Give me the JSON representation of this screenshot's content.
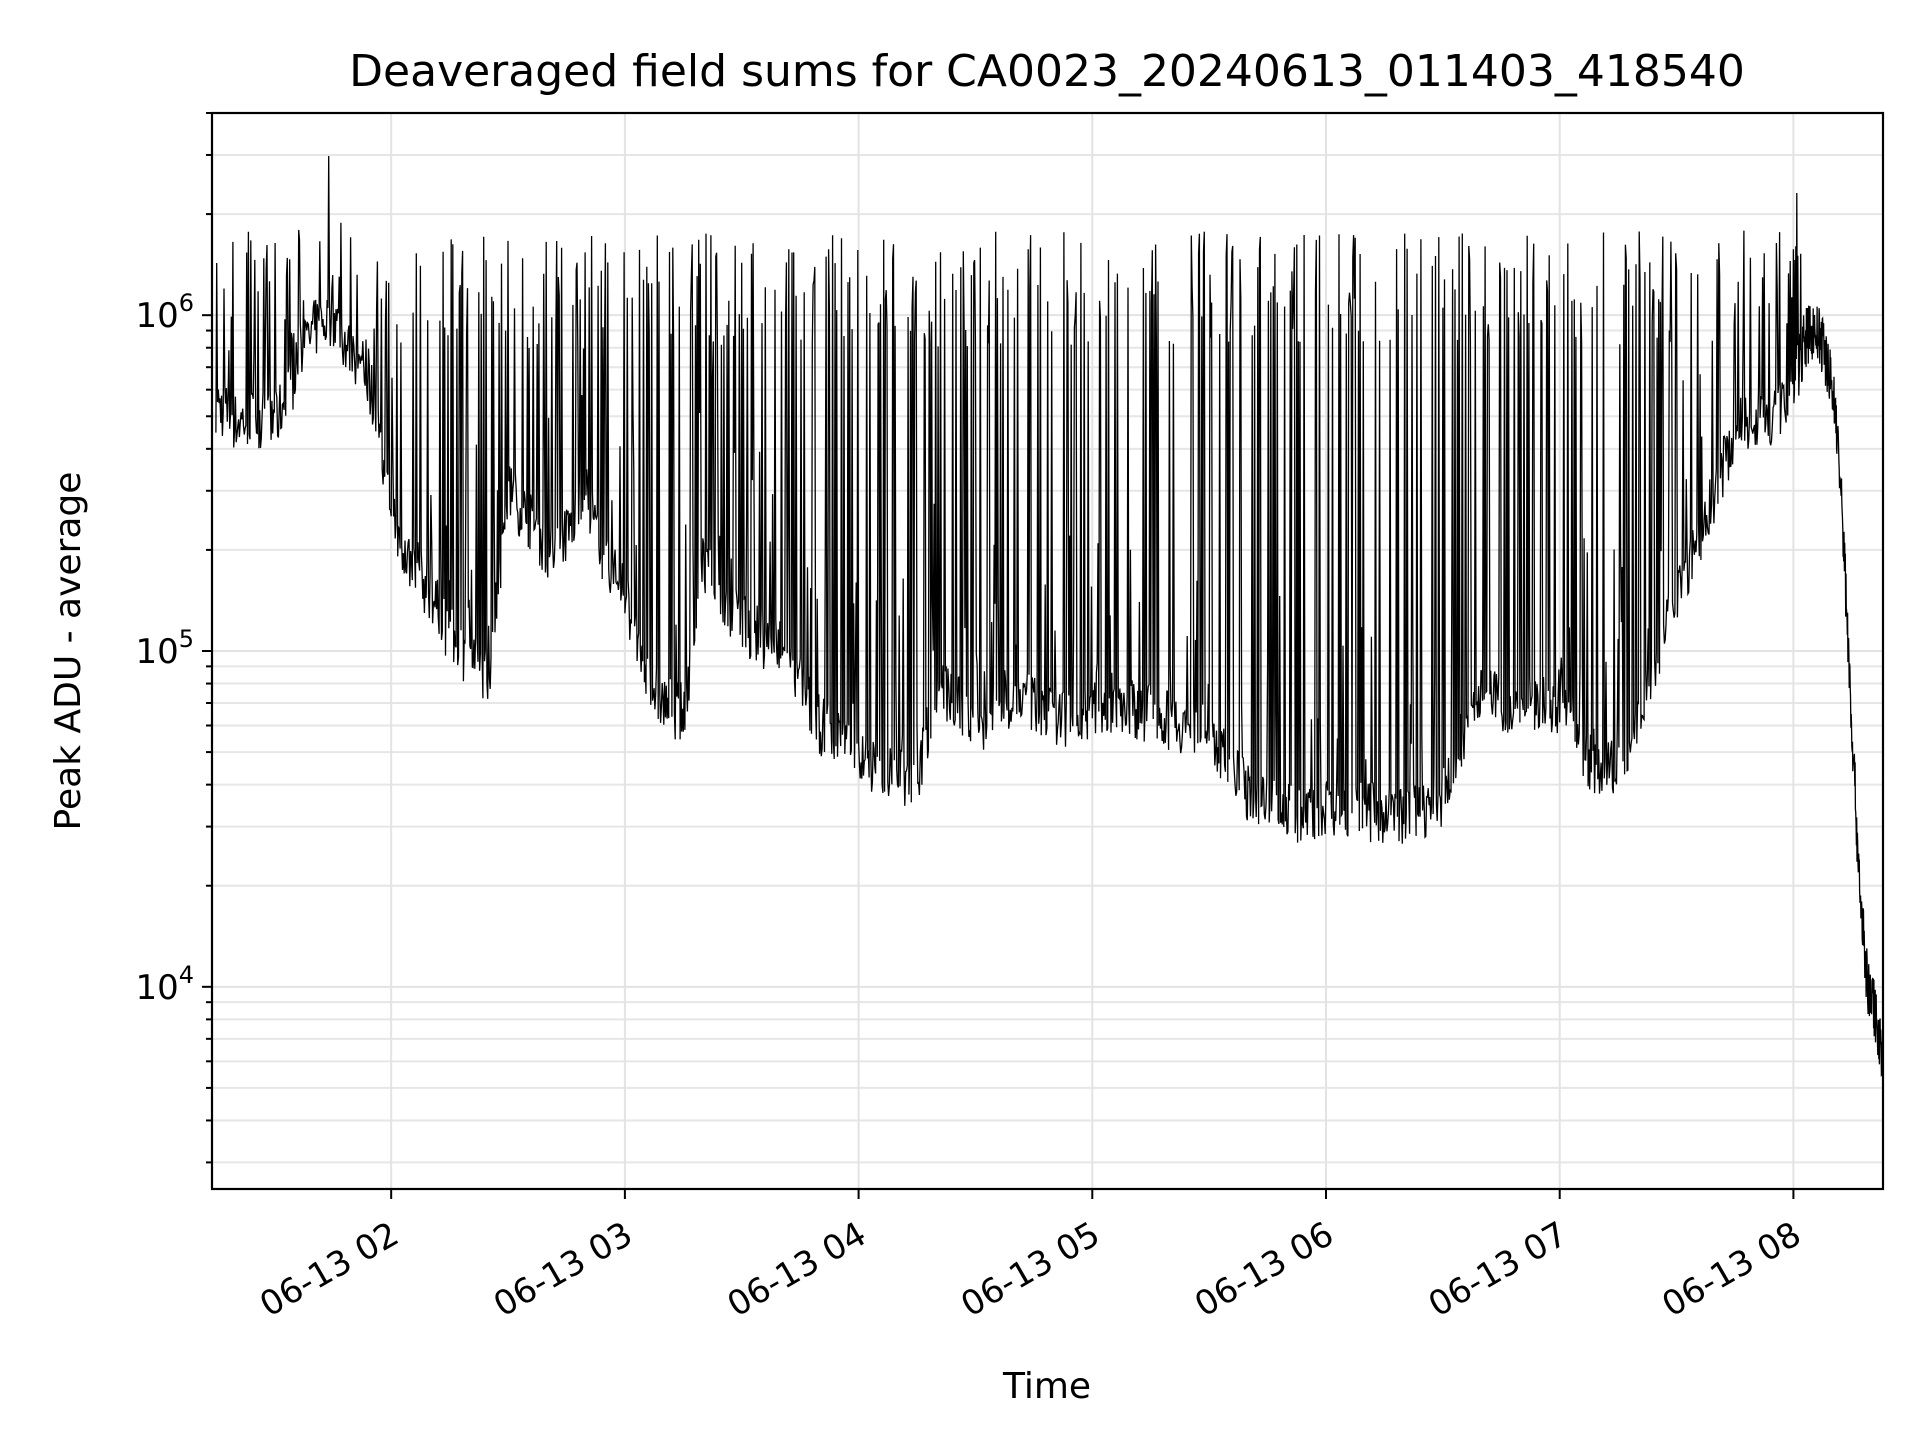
{
  "chart_data": {
    "type": "line",
    "title": "Deaveraged field sums for CA0023_20240613_011403_418540",
    "xlabel": "Time",
    "ylabel": "Peak ADU - average",
    "yscale": "log",
    "ylim": [
      2500,
      4000000
    ],
    "xlim": [
      "2024-06-13 01:14",
      "2024-06-13 08:23"
    ],
    "x_ticks": [
      "06-13 02",
      "06-13 03",
      "06-13 04",
      "06-13 05",
      "06-13 06",
      "06-13 07",
      "06-13 08"
    ],
    "y_ticks": [
      {
        "base": "10",
        "exp": "4",
        "value": 10000
      },
      {
        "base": "10",
        "exp": "5",
        "value": 100000
      },
      {
        "base": "10",
        "exp": "6",
        "value": 1000000
      }
    ],
    "grid": true,
    "line_color": "#000000",
    "series": [
      {
        "x": [
          "2024-06-13 01:15",
          "2024-06-13 01:20",
          "2024-06-13 01:25",
          "2024-06-13 01:30",
          "2024-06-13 01:35",
          "2024-06-13 01:40",
          "2024-06-13 01:45",
          "2024-06-13 01:50",
          "2024-06-13 01:55",
          "2024-06-13 02:00",
          "2024-06-13 02:05",
          "2024-06-13 02:10",
          "2024-06-13 02:15",
          "2024-06-13 02:20",
          "2024-06-13 02:25",
          "2024-06-13 02:30",
          "2024-06-13 02:35",
          "2024-06-13 02:40",
          "2024-06-13 02:45",
          "2024-06-13 02:50",
          "2024-06-13 02:55",
          "2024-06-13 03:00",
          "2024-06-13 03:05",
          "2024-06-13 03:10",
          "2024-06-13 03:15",
          "2024-06-13 03:20",
          "2024-06-13 03:25",
          "2024-06-13 03:30",
          "2024-06-13 03:35",
          "2024-06-13 03:40",
          "2024-06-13 03:45",
          "2024-06-13 03:50",
          "2024-06-13 03:55",
          "2024-06-13 04:00",
          "2024-06-13 04:05",
          "2024-06-13 04:10",
          "2024-06-13 04:15",
          "2024-06-13 04:20",
          "2024-06-13 04:25",
          "2024-06-13 04:30",
          "2024-06-13 04:35",
          "2024-06-13 04:40",
          "2024-06-13 04:45",
          "2024-06-13 04:50",
          "2024-06-13 04:55",
          "2024-06-13 05:00",
          "2024-06-13 05:05",
          "2024-06-13 05:10",
          "2024-06-13 05:15",
          "2024-06-13 05:20",
          "2024-06-13 05:25",
          "2024-06-13 05:30",
          "2024-06-13 05:35",
          "2024-06-13 05:40",
          "2024-06-13 05:45",
          "2024-06-13 05:50",
          "2024-06-13 05:55",
          "2024-06-13 06:00",
          "2024-06-13 06:05",
          "2024-06-13 06:10",
          "2024-06-13 06:15",
          "2024-06-13 06:20",
          "2024-06-13 06:25",
          "2024-06-13 06:30",
          "2024-06-13 06:35",
          "2024-06-13 06:40",
          "2024-06-13 06:45",
          "2024-06-13 06:50",
          "2024-06-13 06:55",
          "2024-06-13 07:00",
          "2024-06-13 07:05",
          "2024-06-13 07:10",
          "2024-06-13 07:15",
          "2024-06-13 07:20",
          "2024-06-13 07:25",
          "2024-06-13 07:30",
          "2024-06-13 07:35",
          "2024-06-13 07:40",
          "2024-06-13 07:45",
          "2024-06-13 07:50",
          "2024-06-13 07:55",
          "2024-06-13 08:00",
          "2024-06-13 08:03",
          "2024-06-13 08:05",
          "2024-06-13 08:07",
          "2024-06-13 08:09",
          "2024-06-13 08:11",
          "2024-06-13 08:13",
          "2024-06-13 08:15",
          "2024-06-13 08:17",
          "2024-06-13 08:19",
          "2024-06-13 08:21",
          "2024-06-13 08:23"
        ],
        "values": [
          550000,
          480000,
          500000,
          470000,
          650000,
          900000,
          1000000,
          750000,
          600000,
          250000,
          180000,
          150000,
          110000,
          95000,
          85000,
          300000,
          250000,
          200000,
          220000,
          300000,
          180000,
          150000,
          85000,
          70000,
          65000,
          180000,
          140000,
          120000,
          110000,
          100000,
          80000,
          60000,
          55000,
          48000,
          44000,
          42000,
          40000,
          80000,
          70000,
          60000,
          65000,
          75000,
          70000,
          65000,
          62000,
          66000,
          70000,
          68000,
          65000,
          62000,
          60000,
          60000,
          45000,
          38000,
          35000,
          33000,
          32000,
          35000,
          34000,
          33000,
          33000,
          32000,
          34000,
          36000,
          55000,
          75000,
          70000,
          68000,
          70000,
          70000,
          55000,
          42000,
          45000,
          65000,
          100000,
          150000,
          200000,
          300000,
          450000,
          500000,
          480000,
          600000,
          850000,
          900000,
          850000,
          700000,
          500000,
          200000,
          60000,
          20000,
          10000,
          8500,
          6000
        ]
      }
    ]
  }
}
